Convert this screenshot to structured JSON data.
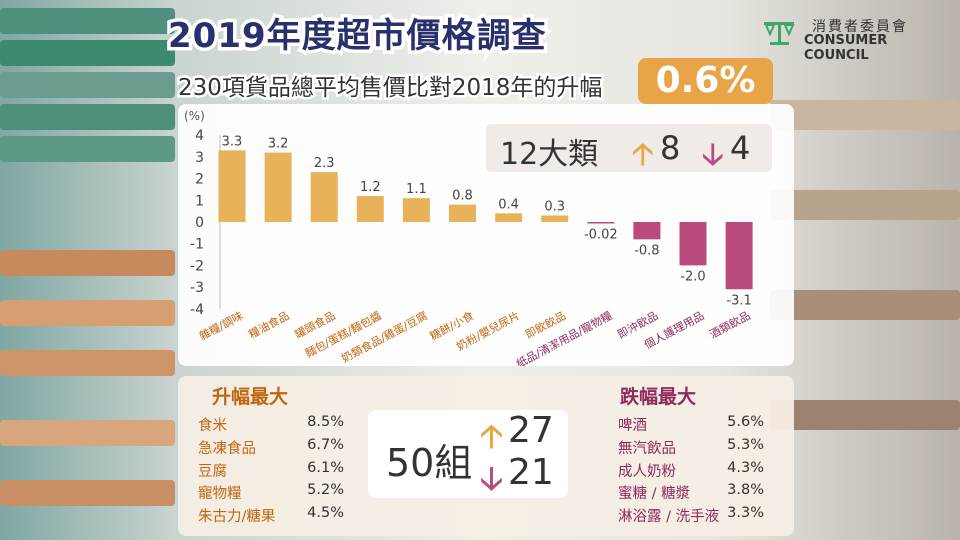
{
  "header": {
    "title": "2019年度超市價格調查",
    "subtitle": "230項貨品總平均售價比對2018年的升幅",
    "highlight_value": "0.6%"
  },
  "logo": {
    "name_zh": "消費者委員會",
    "name_en": "CONSUMER COUNCIL"
  },
  "summary": {
    "categories_label": "12大類",
    "categories_up": "8",
    "categories_down": "4",
    "groups_label": "50組",
    "groups_up": "27",
    "groups_down": "21",
    "up_arrow": "🡡",
    "down_arrow": "🡣"
  },
  "rise": {
    "title": "升幅最大",
    "items": [
      {
        "name": "食米",
        "value": "8.5%"
      },
      {
        "name": "急凍食品",
        "value": "6.7%"
      },
      {
        "name": "豆腐",
        "value": "6.1%"
      },
      {
        "name": "寵物糧",
        "value": "5.2%"
      },
      {
        "name": "朱古力/糖果",
        "value": "4.5%"
      }
    ]
  },
  "fall": {
    "title": "跌幅最大",
    "items": [
      {
        "name": "啤酒",
        "value": "5.6%"
      },
      {
        "name": "無汽飲品",
        "value": "5.3%"
      },
      {
        "name": "成人奶粉",
        "value": "4.3%"
      },
      {
        "name": "蜜糖 / 糖漿",
        "value": "3.8%"
      },
      {
        "name": "淋浴露 / 洗手液",
        "value": "3.3%"
      }
    ]
  },
  "colors": {
    "positive": "#e7b25a",
    "negative": "#b94b7f",
    "title": "#2a2f6e",
    "accent": "#e7a548"
  },
  "chart_data": {
    "type": "bar",
    "ylabel": "(%)",
    "ylim": [
      -4,
      4
    ],
    "yticks": [
      4,
      3,
      2,
      1,
      0,
      -1,
      -2,
      -3,
      -4
    ],
    "grid": false,
    "categories": [
      "雜糧/調味",
      "糧油食品",
      "罐頭食品",
      "麵包/蛋糕/麵包醬",
      "奶類食品/雞蛋/豆腐",
      "糖餅/小食",
      "奶粉/嬰兒尿片",
      "即飲飲品",
      "紙品/清潔用品/寵物糧",
      "即沖飲品",
      "個人護理用品",
      "酒類飲品"
    ],
    "values": [
      3.3,
      3.2,
      2.3,
      1.2,
      1.1,
      0.8,
      0.4,
      0.3,
      -0.02,
      -0.8,
      -2.0,
      -3.1
    ],
    "value_labels": [
      "3.3",
      "3.2",
      "2.3",
      "1.2",
      "1.1",
      "0.8",
      "0.4",
      "0.3",
      "-0.02",
      "-0.8",
      "-2.0",
      "-3.1"
    ]
  }
}
